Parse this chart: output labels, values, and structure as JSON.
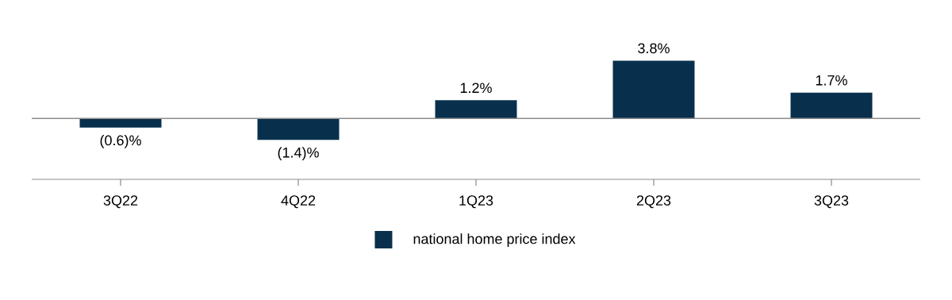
{
  "chart_data": {
    "type": "bar",
    "categories": [
      "3Q22",
      "4Q22",
      "1Q23",
      "2Q23",
      "3Q23"
    ],
    "series": [
      {
        "name": "national home price index",
        "color": "#08304d",
        "values": [
          -0.6,
          -1.4,
          1.2,
          3.8,
          1.7
        ],
        "value_labels": [
          "(0.6)%",
          "(1.4)%",
          "1.2%",
          "3.8%",
          "1.7%"
        ]
      }
    ],
    "tick_labels": "x",
    "legend": "bottom"
  }
}
